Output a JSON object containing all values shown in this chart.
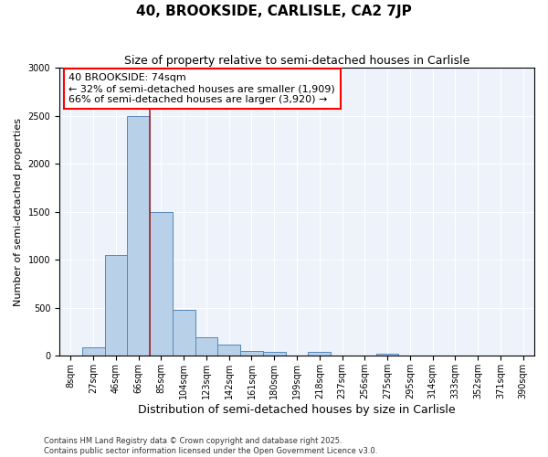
{
  "title": "40, BROOKSIDE, CARLISLE, CA2 7JP",
  "subtitle": "Size of property relative to semi-detached houses in Carlisle",
  "xlabel": "Distribution of semi-detached houses by size in Carlisle",
  "ylabel": "Number of semi-detached properties",
  "annotation_line1": "40 BROOKSIDE: 74sqm",
  "annotation_line2": "← 32% of semi-detached houses are smaller (1,909)",
  "annotation_line3": "66% of semi-detached houses are larger (3,920) →",
  "bin_labels": [
    "8sqm",
    "27sqm",
    "46sqm",
    "66sqm",
    "85sqm",
    "104sqm",
    "123sqm",
    "142sqm",
    "161sqm",
    "180sqm",
    "199sqm",
    "218sqm",
    "237sqm",
    "256sqm",
    "275sqm",
    "295sqm",
    "314sqm",
    "333sqm",
    "352sqm",
    "371sqm",
    "390sqm"
  ],
  "bin_values": [
    0,
    85,
    1050,
    2500,
    1500,
    480,
    195,
    120,
    55,
    45,
    0,
    45,
    0,
    0,
    20,
    0,
    0,
    0,
    0,
    0,
    0
  ],
  "bar_color": "#b8d0e8",
  "bar_edge_color": "#5588bb",
  "vline_color": "#aa2222",
  "vline_x": 3.5,
  "ylim": [
    0,
    3000
  ],
  "yticks": [
    0,
    500,
    1000,
    1500,
    2000,
    2500,
    3000
  ],
  "background_color": "#eef2fa",
  "grid_color": "#ffffff",
  "footer_text": "Contains HM Land Registry data © Crown copyright and database right 2025.\nContains public sector information licensed under the Open Government Licence v3.0.",
  "title_fontsize": 11,
  "subtitle_fontsize": 9,
  "ylabel_fontsize": 8,
  "xlabel_fontsize": 9,
  "annotation_fontsize": 8,
  "tick_fontsize": 7,
  "footer_fontsize": 6
}
